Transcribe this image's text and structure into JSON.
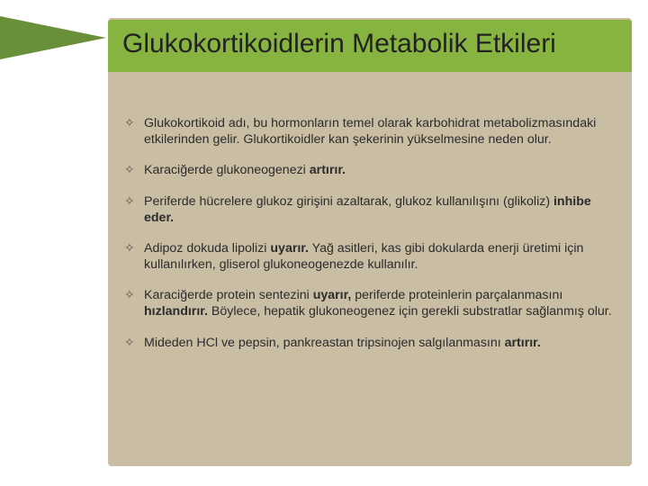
{
  "colors": {
    "sidebar_wedge": "#6a8f3a",
    "title_band_bg": "#87b440",
    "content_panel_bg": "#c9bda3",
    "title_text": "#222222",
    "body_text": "#2c2c2c",
    "bullet_marker": "#5a5a5a"
  },
  "title": "Glukokortikoidlerin Metabolik Etkileri",
  "bullets": [
    {
      "html": "Glukokortikoid adı, bu hormonların temel olarak karbohidrat metabolizmasındaki etkilerinden gelir. Glukortikoidler kan şekerinin yükselmesine neden olur."
    },
    {
      "html": "Karaciğerde glukoneogenezi <b>artırır.</b>"
    },
    {
      "html": "Periferde hücrelere glukoz girişini azaltarak, glukoz kullanılışını (glikoliz) <b>inhibe eder.</b>"
    },
    {
      "html": "Adipoz dokuda lipolizi <b>uyarır.</b> Yağ asitleri, kas gibi dokularda enerji üretimi için kullanılırken, gliserol glukoneogenezde kullanılır."
    },
    {
      "html": "Karaciğerde protein sentezini <b>uyarır,</b> periferde proteinlerin parçalanmasını <b>hızlandırır.</b> Böylece, hepatik glukoneogenez için gerekli substratlar sağlanmış olur."
    },
    {
      "html": "Mideden HCl ve pepsin, pankreastan tripsinojen salgılanmasını <b>artırır.</b>"
    }
  ],
  "bullet_glyph": "✧"
}
